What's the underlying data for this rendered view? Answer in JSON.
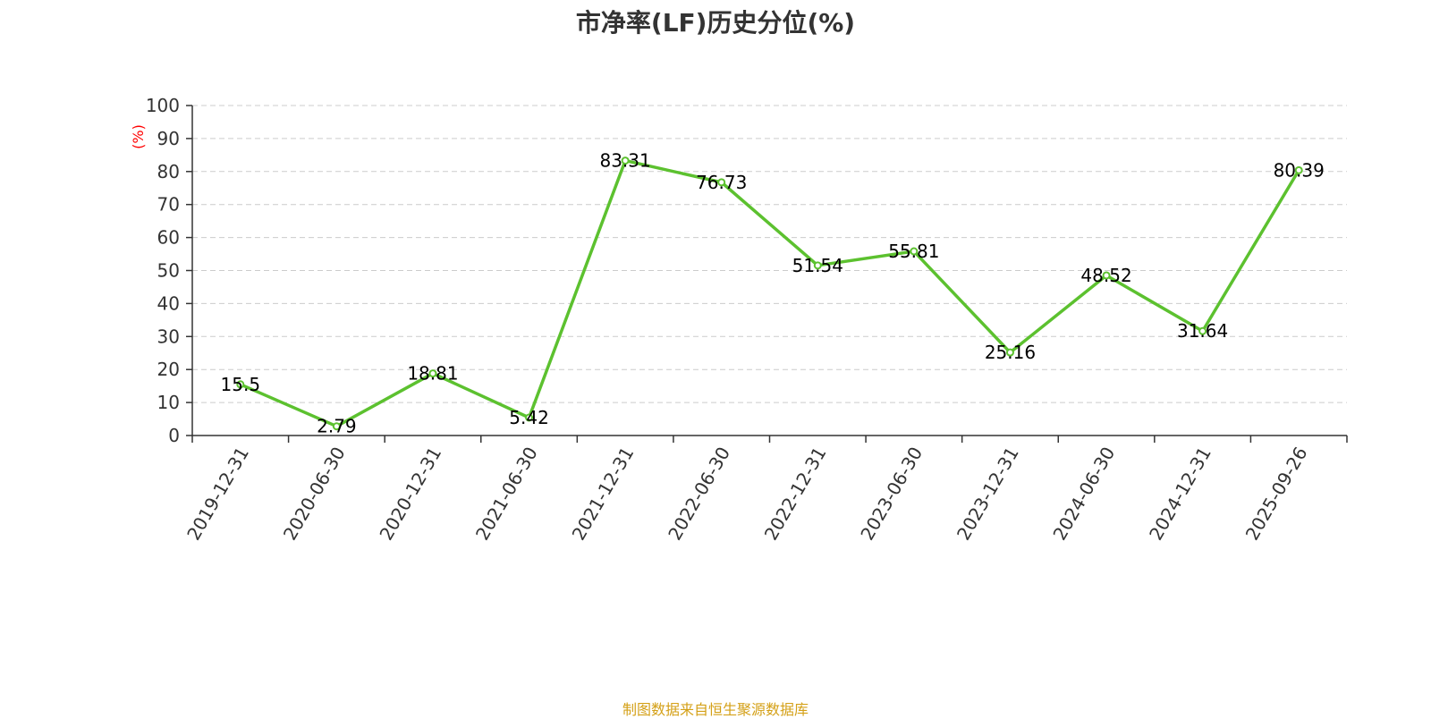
{
  "chart_data": {
    "type": "line",
    "title": "市净率(LF)历史分位(%)",
    "unit_label": "(%)",
    "source": "制图数据来自恒生聚源数据库",
    "x": [
      "2019-12-31",
      "2020-06-30",
      "2020-12-31",
      "2021-06-30",
      "2021-12-31",
      "2022-06-30",
      "2022-12-31",
      "2023-06-30",
      "2023-12-31",
      "2024-06-30",
      "2024-12-31",
      "2025-09-26"
    ],
    "series": [
      {
        "values": [
          15.5,
          2.79,
          18.81,
          5.42,
          83.31,
          76.73,
          51.54,
          55.81,
          25.16,
          48.52,
          31.64,
          80.39
        ],
        "labels": [
          "15.5",
          "2.79",
          "18.81",
          "5.42",
          "83.31",
          "76.73",
          "51.54",
          "55.81",
          "25.16",
          "48.52",
          "31.64",
          "80.39"
        ]
      }
    ],
    "ylim": [
      0,
      100
    ],
    "yticks": [
      "0",
      "10",
      "20",
      "30",
      "40",
      "50",
      "60",
      "70",
      "80",
      "90",
      "100"
    ],
    "grid": true,
    "colors": {
      "line": "#5cc12f",
      "marker_fill": "#ffffff",
      "unit": "#ff0000",
      "grid": "#cccccc",
      "axis": "#333333",
      "source": "#d4a017"
    }
  }
}
